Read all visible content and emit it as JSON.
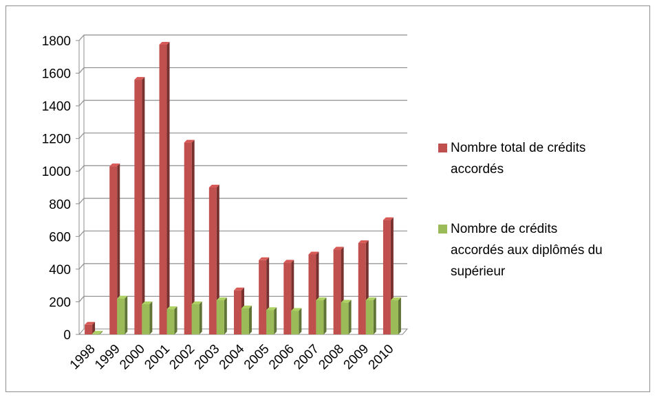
{
  "chart_data": {
    "type": "bar",
    "title": "",
    "xlabel": "",
    "ylabel": "",
    "categories": [
      "1998",
      "1999",
      "2000",
      "2001",
      "2002",
      "2003",
      "2004",
      "2005",
      "2006",
      "2007",
      "2008",
      "2009",
      "2010"
    ],
    "series": [
      {
        "name": "Nombre total de crédits accordés",
        "legend_lines": [
          "Nombre total de crédits",
          "accordés"
        ],
        "color": "#c0504d",
        "values": [
          60,
          1030,
          1560,
          1775,
          1175,
          900,
          270,
          455,
          440,
          490,
          520,
          560,
          700
        ]
      },
      {
        "name": "Nombre de crédits accordés aux diplômés du supérieur",
        "legend_lines": [
          "Nombre de crédits",
          "accordés aux diplômés du",
          "supérieur"
        ],
        "color": "#9bbb59",
        "values": [
          5,
          220,
          185,
          155,
          185,
          210,
          160,
          150,
          145,
          210,
          195,
          210,
          210
        ]
      }
    ],
    "ylim": [
      0,
      1800
    ],
    "yticks": [
      0,
      200,
      400,
      600,
      800,
      1000,
      1200,
      1400,
      1600,
      1800
    ],
    "grid": true,
    "legend_position": "right",
    "style": "3d-column"
  }
}
